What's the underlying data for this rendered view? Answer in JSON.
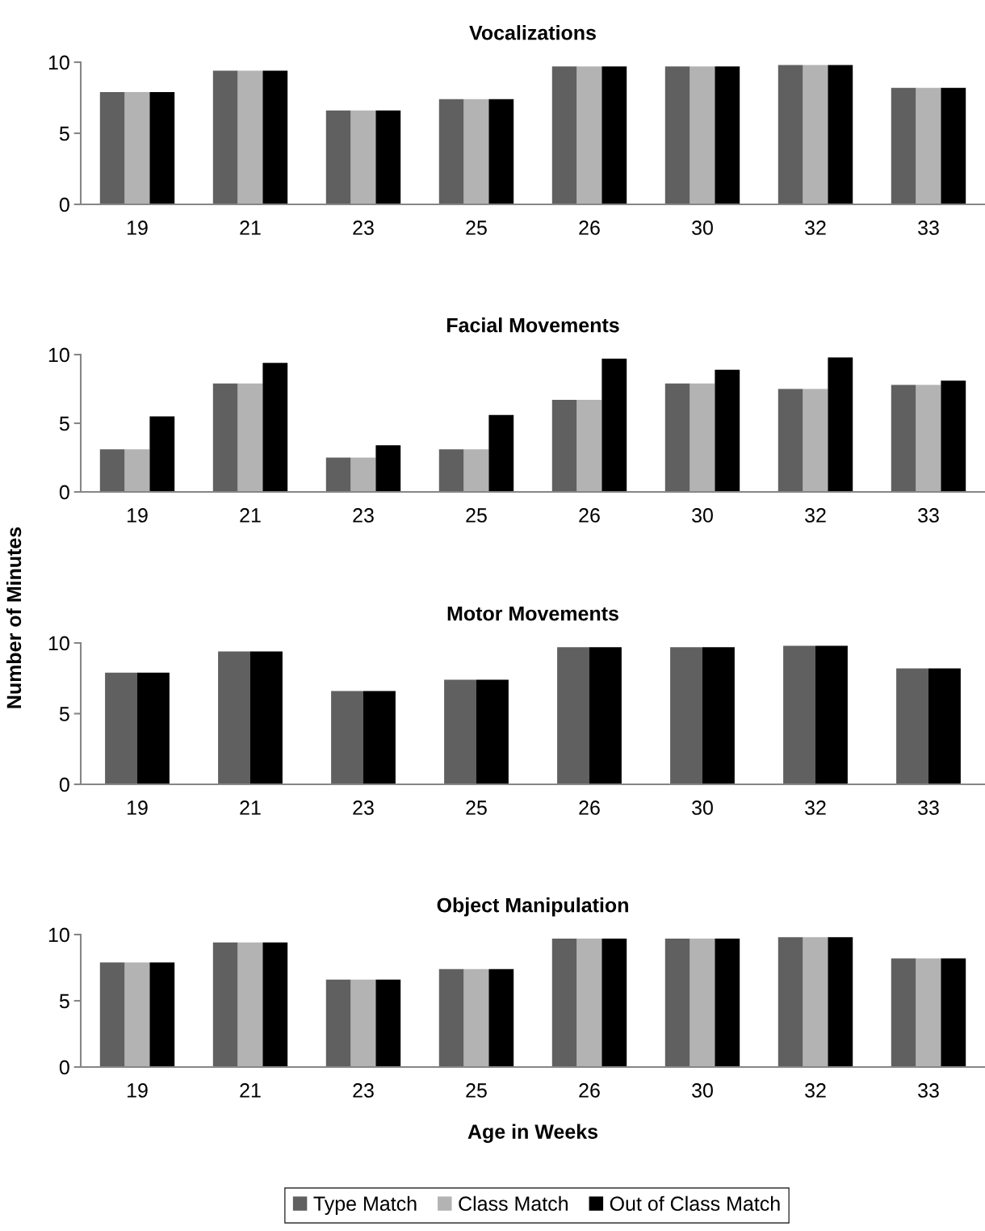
{
  "chart_data": [
    {
      "type": "bar",
      "title": "Vocalizations",
      "categories": [
        "19",
        "21",
        "23",
        "25",
        "26",
        "30",
        "32",
        "33"
      ],
      "ylim": [
        0,
        10
      ],
      "yticks": [
        0,
        5,
        10
      ],
      "grid": false,
      "legend": false,
      "series": [
        {
          "color": "#606060",
          "values": [
            7.9,
            9.4,
            6.6,
            7.4,
            9.7,
            9.7,
            9.8,
            8.2
          ]
        },
        {
          "color": "#b3b3b3",
          "values": [
            7.9,
            9.4,
            6.6,
            7.4,
            9.7,
            9.7,
            9.8,
            8.2
          ]
        },
        {
          "color": "#000000",
          "values": [
            7.9,
            9.4,
            6.6,
            7.4,
            9.7,
            9.7,
            9.8,
            8.2
          ]
        }
      ]
    },
    {
      "type": "bar",
      "title": "Facial Movements",
      "ylabel": "Number of Minutes",
      "categories": [
        "19",
        "21",
        "23",
        "25",
        "26",
        "30",
        "32",
        "33"
      ],
      "ylim": [
        0,
        10
      ],
      "yticks": [
        0,
        5,
        10
      ],
      "grid": false,
      "legend": false,
      "series": [
        {
          "color": "#606060",
          "values": [
            3.1,
            7.9,
            2.5,
            3.1,
            6.7,
            7.9,
            7.5,
            7.8
          ]
        },
        {
          "color": "#b3b3b3",
          "values": [
            3.1,
            7.9,
            2.5,
            3.1,
            6.7,
            7.9,
            7.5,
            7.8
          ]
        },
        {
          "color": "#000000",
          "values": [
            5.5,
            9.4,
            3.4,
            5.6,
            9.7,
            8.9,
            9.8,
            8.1
          ]
        }
      ]
    },
    {
      "type": "bar",
      "title": "Motor Movements",
      "categories": [
        "19",
        "21",
        "23",
        "25",
        "26",
        "30",
        "32",
        "33"
      ],
      "ylim": [
        0,
        10
      ],
      "yticks": [
        0,
        5,
        10
      ],
      "grid": false,
      "legend": false,
      "series": [
        {
          "color": "#606060",
          "values": [
            7.9,
            9.4,
            6.6,
            7.4,
            9.7,
            9.7,
            9.8,
            8.2
          ]
        },
        {
          "color": "#000000",
          "values": [
            7.9,
            9.4,
            6.6,
            7.4,
            9.7,
            9.7,
            9.8,
            8.2
          ]
        }
      ]
    },
    {
      "type": "bar",
      "title": "Object Manipulation",
      "xlabel": "Age in Weeks",
      "categories": [
        "19",
        "21",
        "23",
        "25",
        "26",
        "30",
        "32",
        "33"
      ],
      "ylim": [
        0,
        10
      ],
      "yticks": [
        0,
        5,
        10
      ],
      "grid": false,
      "legend": "bottom",
      "series": [
        {
          "name": "Type Match",
          "color": "#606060",
          "values": [
            7.9,
            9.4,
            6.6,
            7.4,
            9.7,
            9.7,
            9.8,
            8.2
          ]
        },
        {
          "name": "Class Match",
          "color": "#b3b3b3",
          "values": [
            7.9,
            9.4,
            6.6,
            7.4,
            9.7,
            9.7,
            9.8,
            8.2
          ]
        },
        {
          "name": "Out of Class Match",
          "color": "#000000",
          "values": [
            7.9,
            9.4,
            6.6,
            7.4,
            9.7,
            9.7,
            9.8,
            8.2
          ]
        }
      ]
    }
  ]
}
